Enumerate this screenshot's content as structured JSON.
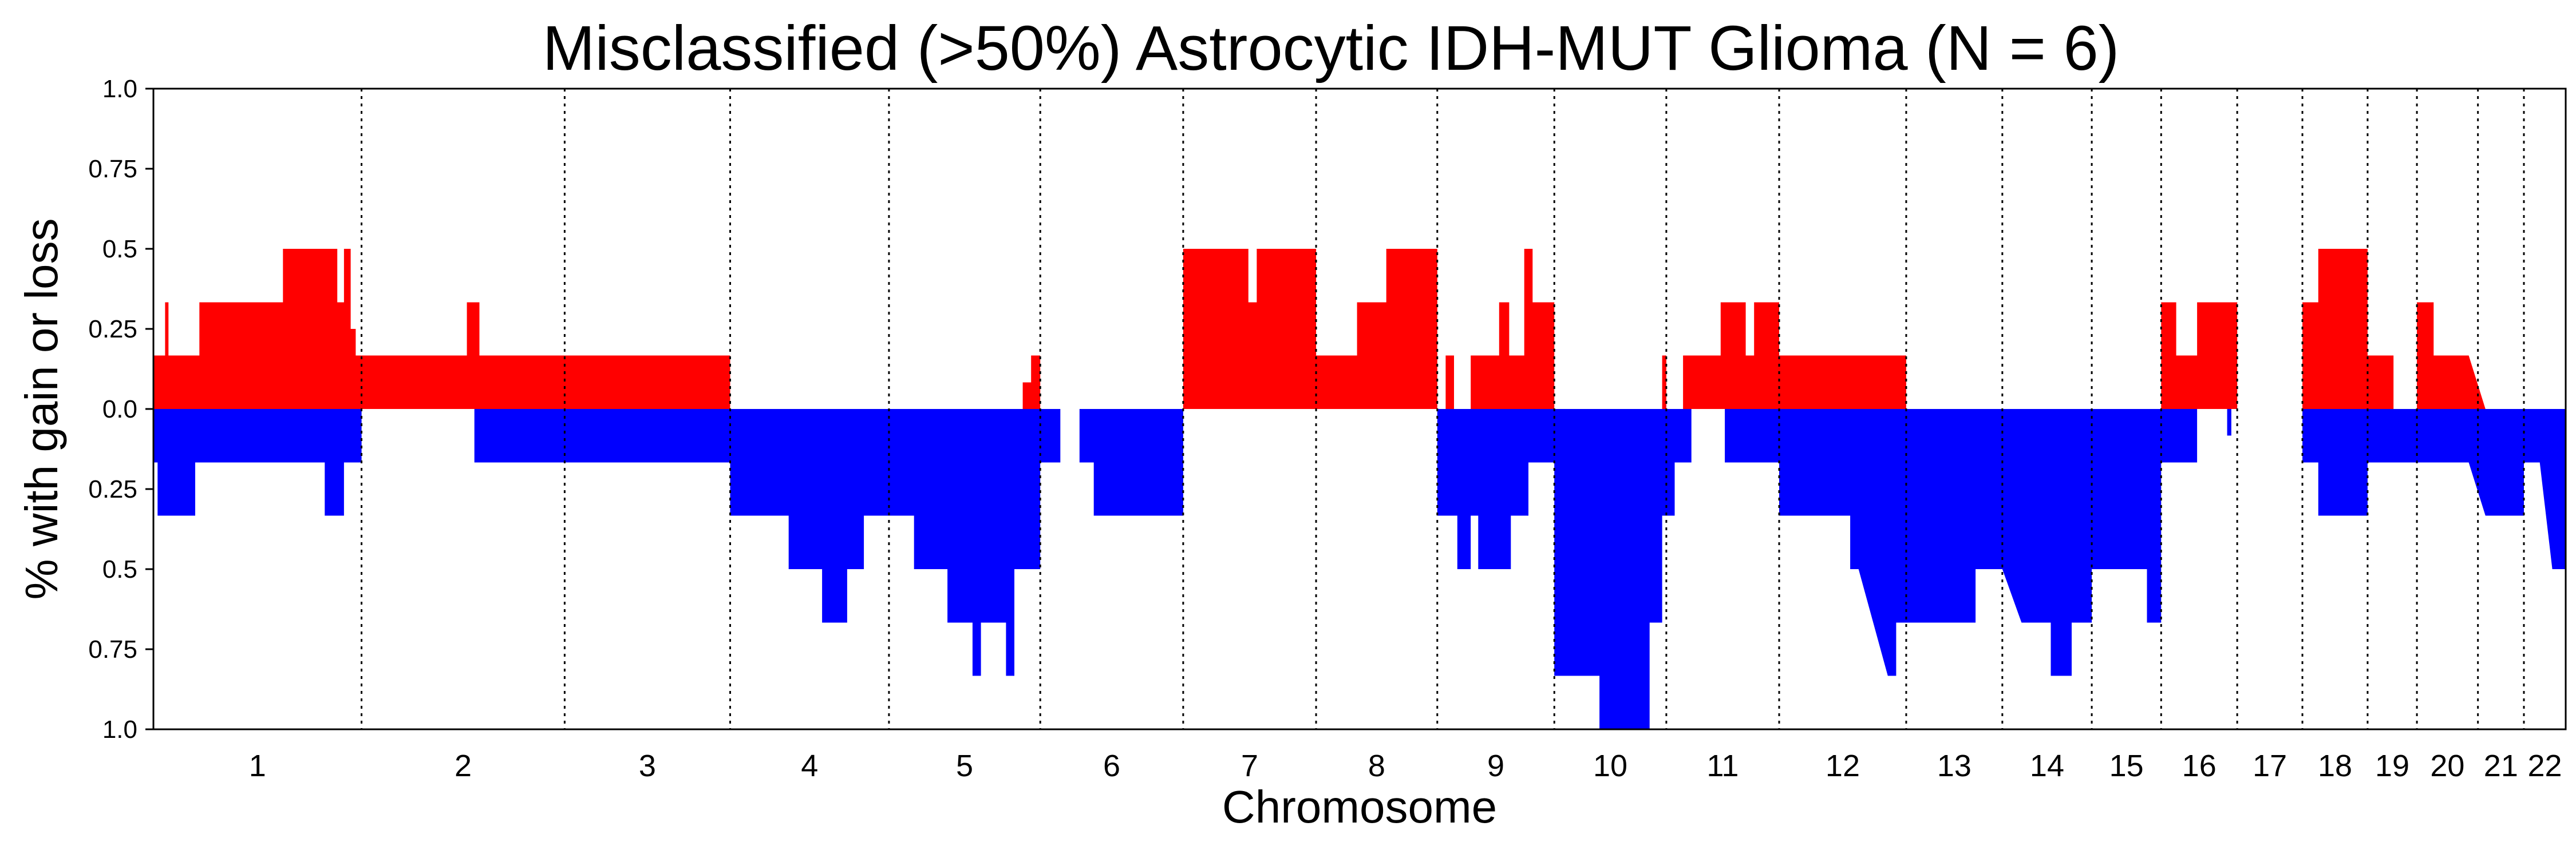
{
  "chart_data": {
    "type": "area",
    "title": "Misclassified (>50%) Astrocytic IDH-MUT Glioma (N = 6)",
    "xlabel": "Chromosome",
    "ylabel": "% with gain or loss",
    "ylim": [
      -1.0,
      1.0
    ],
    "y_ticks": [
      {
        "value": 1.0,
        "label": "1.0"
      },
      {
        "value": 0.75,
        "label": "0.75"
      },
      {
        "value": 0.5,
        "label": "0.5"
      },
      {
        "value": 0.25,
        "label": "0.25"
      },
      {
        "value": 0.0,
        "label": "0.0"
      },
      {
        "value": -0.25,
        "label": "0.25"
      },
      {
        "value": -0.5,
        "label": "0.5"
      },
      {
        "value": -0.75,
        "label": "0.75"
      },
      {
        "value": -1.0,
        "label": "1.0"
      }
    ],
    "grid": false,
    "legend": "none",
    "chromosomes": [
      {
        "label": "1",
        "start": 0,
        "end": 249
      },
      {
        "label": "2",
        "start": 249,
        "end": 492
      },
      {
        "label": "3",
        "start": 492,
        "end": 690
      },
      {
        "label": "4",
        "start": 690,
        "end": 880
      },
      {
        "label": "5",
        "start": 880,
        "end": 1061
      },
      {
        "label": "6",
        "start": 1061,
        "end": 1232
      },
      {
        "label": "7",
        "start": 1232,
        "end": 1391
      },
      {
        "label": "8",
        "start": 1391,
        "end": 1536
      },
      {
        "label": "9",
        "start": 1536,
        "end": 1676
      },
      {
        "label": "10",
        "start": 1676,
        "end": 1810
      },
      {
        "label": "11",
        "start": 1810,
        "end": 1945
      },
      {
        "label": "12",
        "start": 1945,
        "end": 2097
      },
      {
        "label": "13",
        "start": 2097,
        "end": 2212
      },
      {
        "label": "14",
        "start": 2212,
        "end": 2319
      },
      {
        "label": "15",
        "start": 2319,
        "end": 2402
      },
      {
        "label": "16",
        "start": 2402,
        "end": 2493
      },
      {
        "label": "17",
        "start": 2493,
        "end": 2571
      },
      {
        "label": "18",
        "start": 2571,
        "end": 2649
      },
      {
        "label": "19",
        "start": 2649,
        "end": 2708
      },
      {
        "label": "20",
        "start": 2708,
        "end": 2781
      },
      {
        "label": "21",
        "start": 2781,
        "end": 2836
      },
      {
        "label": "22",
        "start": 2836,
        "end": 2886
      }
    ],
    "series": [
      {
        "kind": "gain",
        "color": "#ff0000",
        "points": [
          [
            0,
            0.167
          ],
          [
            14,
            0.167
          ],
          [
            14,
            0.333
          ],
          [
            18,
            0.333
          ],
          [
            18,
            0.167
          ],
          [
            55,
            0.167
          ],
          [
            55,
            0.333
          ],
          [
            155,
            0.333
          ],
          [
            155,
            0.5
          ],
          [
            220,
            0.5
          ],
          [
            220,
            0.333
          ],
          [
            228,
            0.333
          ],
          [
            228,
            0.5
          ],
          [
            236,
            0.5
          ],
          [
            236,
            0.25
          ],
          [
            242,
            0.25
          ],
          [
            242,
            0.167
          ],
          [
            375,
            0.167
          ],
          [
            375,
            0.333
          ],
          [
            390,
            0.333
          ],
          [
            390,
            0.167
          ],
          [
            690,
            0.167
          ],
          [
            690,
            0
          ],
          [
            1040,
            0
          ],
          [
            1040,
            0.083
          ],
          [
            1050,
            0.083
          ],
          [
            1050,
            0.167
          ],
          [
            1061,
            0.167
          ],
          [
            1061,
            0
          ],
          [
            1232,
            0
          ],
          [
            1232,
            0.5
          ],
          [
            1310,
            0.5
          ],
          [
            1310,
            0.333
          ],
          [
            1320,
            0.333
          ],
          [
            1320,
            0.5
          ],
          [
            1391,
            0.5
          ],
          [
            1391,
            0.167
          ],
          [
            1440,
            0.167
          ],
          [
            1440,
            0.333
          ],
          [
            1475,
            0.333
          ],
          [
            1475,
            0.5
          ],
          [
            1536,
            0.5
          ],
          [
            1536,
            0
          ],
          [
            1546,
            0
          ],
          [
            1546,
            0.167
          ],
          [
            1556,
            0.167
          ],
          [
            1556,
            0
          ],
          [
            1576,
            0
          ],
          [
            1576,
            0.167
          ],
          [
            1610,
            0.167
          ],
          [
            1610,
            0.333
          ],
          [
            1622,
            0.333
          ],
          [
            1622,
            0.167
          ],
          [
            1640,
            0.167
          ],
          [
            1640,
            0.5
          ],
          [
            1650,
            0.5
          ],
          [
            1650,
            0.333
          ],
          [
            1676,
            0.333
          ],
          [
            1676,
            0
          ],
          [
            1805,
            0
          ],
          [
            1805,
            0.167
          ],
          [
            1810,
            0.167
          ],
          [
            1810,
            0
          ],
          [
            1830,
            0
          ],
          [
            1830,
            0.167
          ],
          [
            1875,
            0.167
          ],
          [
            1875,
            0.333
          ],
          [
            1905,
            0.333
          ],
          [
            1905,
            0.167
          ],
          [
            1915,
            0.167
          ],
          [
            1915,
            0.333
          ],
          [
            1945,
            0.333
          ],
          [
            1945,
            0.167
          ],
          [
            2097,
            0.167
          ],
          [
            2097,
            0
          ],
          [
            2402,
            0
          ],
          [
            2402,
            0.333
          ],
          [
            2420,
            0.333
          ],
          [
            2420,
            0.167
          ],
          [
            2445,
            0.167
          ],
          [
            2445,
            0.333
          ],
          [
            2493,
            0.333
          ],
          [
            2493,
            0
          ],
          [
            2571,
            0
          ],
          [
            2571,
            0.333
          ],
          [
            2590,
            0.333
          ],
          [
            2590,
            0.5
          ],
          [
            2649,
            0.5
          ],
          [
            2649,
            0.167
          ],
          [
            2680,
            0.167
          ],
          [
            2680,
            0
          ],
          [
            2708,
            0
          ],
          [
            2708,
            0.333
          ],
          [
            2728,
            0.333
          ],
          [
            2728,
            0.167
          ],
          [
            2770,
            0.167
          ],
          [
            2790,
            0
          ],
          [
            2886,
            0
          ]
        ]
      },
      {
        "kind": "loss",
        "color": "#0000ff",
        "points": [
          [
            0,
            -0.167
          ],
          [
            5,
            -0.167
          ],
          [
            5,
            -0.333
          ],
          [
            50,
            -0.333
          ],
          [
            50,
            -0.167
          ],
          [
            205,
            -0.167
          ],
          [
            205,
            -0.333
          ],
          [
            228,
            -0.333
          ],
          [
            228,
            -0.167
          ],
          [
            249,
            -0.167
          ],
          [
            249,
            0
          ],
          [
            384,
            0
          ],
          [
            384,
            -0.167
          ],
          [
            690,
            -0.167
          ],
          [
            690,
            -0.333
          ],
          [
            760,
            -0.333
          ],
          [
            760,
            -0.5
          ],
          [
            800,
            -0.5
          ],
          [
            800,
            -0.667
          ],
          [
            830,
            -0.667
          ],
          [
            830,
            -0.5
          ],
          [
            850,
            -0.5
          ],
          [
            850,
            -0.333
          ],
          [
            880,
            -0.333
          ],
          [
            910,
            -0.333
          ],
          [
            910,
            -0.5
          ],
          [
            950,
            -0.5
          ],
          [
            950,
            -0.667
          ],
          [
            980,
            -0.667
          ],
          [
            980,
            -0.833
          ],
          [
            990,
            -0.833
          ],
          [
            990,
            -0.667
          ],
          [
            1020,
            -0.667
          ],
          [
            1020,
            -0.833
          ],
          [
            1030,
            -0.833
          ],
          [
            1030,
            -0.5
          ],
          [
            1061,
            -0.5
          ],
          [
            1061,
            -0.167
          ],
          [
            1085,
            -0.167
          ],
          [
            1085,
            0
          ],
          [
            1108,
            0
          ],
          [
            1108,
            -0.167
          ],
          [
            1125,
            -0.167
          ],
          [
            1125,
            -0.333
          ],
          [
            1232,
            -0.333
          ],
          [
            1232,
            0
          ],
          [
            1536,
            0
          ],
          [
            1536,
            -0.333
          ],
          [
            1560,
            -0.333
          ],
          [
            1560,
            -0.5
          ],
          [
            1576,
            -0.5
          ],
          [
            1576,
            -0.333
          ],
          [
            1585,
            -0.333
          ],
          [
            1585,
            -0.5
          ],
          [
            1624,
            -0.5
          ],
          [
            1624,
            -0.333
          ],
          [
            1645,
            -0.333
          ],
          [
            1645,
            -0.167
          ],
          [
            1676,
            -0.167
          ],
          [
            1676,
            -0.833
          ],
          [
            1730,
            -0.833
          ],
          [
            1730,
            -1.0
          ],
          [
            1790,
            -1.0
          ],
          [
            1790,
            -0.667
          ],
          [
            1805,
            -0.667
          ],
          [
            1805,
            -0.333
          ],
          [
            1820,
            -0.333
          ],
          [
            1820,
            -0.167
          ],
          [
            1840,
            -0.167
          ],
          [
            1840,
            0
          ],
          [
            1880,
            0
          ],
          [
            1880,
            -0.167
          ],
          [
            1945,
            -0.167
          ],
          [
            1945,
            -0.333
          ],
          [
            2030,
            -0.333
          ],
          [
            2030,
            -0.5
          ],
          [
            2040,
            -0.5
          ],
          [
            2075,
            -0.833
          ],
          [
            2085,
            -0.833
          ],
          [
            2085,
            -0.667
          ],
          [
            2180,
            -0.667
          ],
          [
            2180,
            -0.5
          ],
          [
            2212,
            -0.5
          ],
          [
            2235,
            -0.667
          ],
          [
            2270,
            -0.667
          ],
          [
            2270,
            -0.833
          ],
          [
            2295,
            -0.833
          ],
          [
            2295,
            -0.667
          ],
          [
            2319,
            -0.667
          ],
          [
            2319,
            -0.5
          ],
          [
            2385,
            -0.5
          ],
          [
            2385,
            -0.667
          ],
          [
            2402,
            -0.667
          ],
          [
            2402,
            -0.167
          ],
          [
            2445,
            -0.167
          ],
          [
            2445,
            0
          ],
          [
            2481,
            0
          ],
          [
            2481,
            -0.083
          ],
          [
            2486,
            -0.083
          ],
          [
            2486,
            0
          ],
          [
            2571,
            0
          ],
          [
            2571,
            -0.167
          ],
          [
            2590,
            -0.167
          ],
          [
            2590,
            -0.333
          ],
          [
            2649,
            -0.333
          ],
          [
            2649,
            -0.167
          ],
          [
            2770,
            -0.167
          ],
          [
            2790,
            -0.333
          ],
          [
            2836,
            -0.333
          ],
          [
            2836,
            -0.167
          ],
          [
            2855,
            -0.167
          ],
          [
            2870,
            -0.5
          ],
          [
            2886,
            -0.5
          ],
          [
            2886,
            0
          ]
        ]
      }
    ]
  }
}
